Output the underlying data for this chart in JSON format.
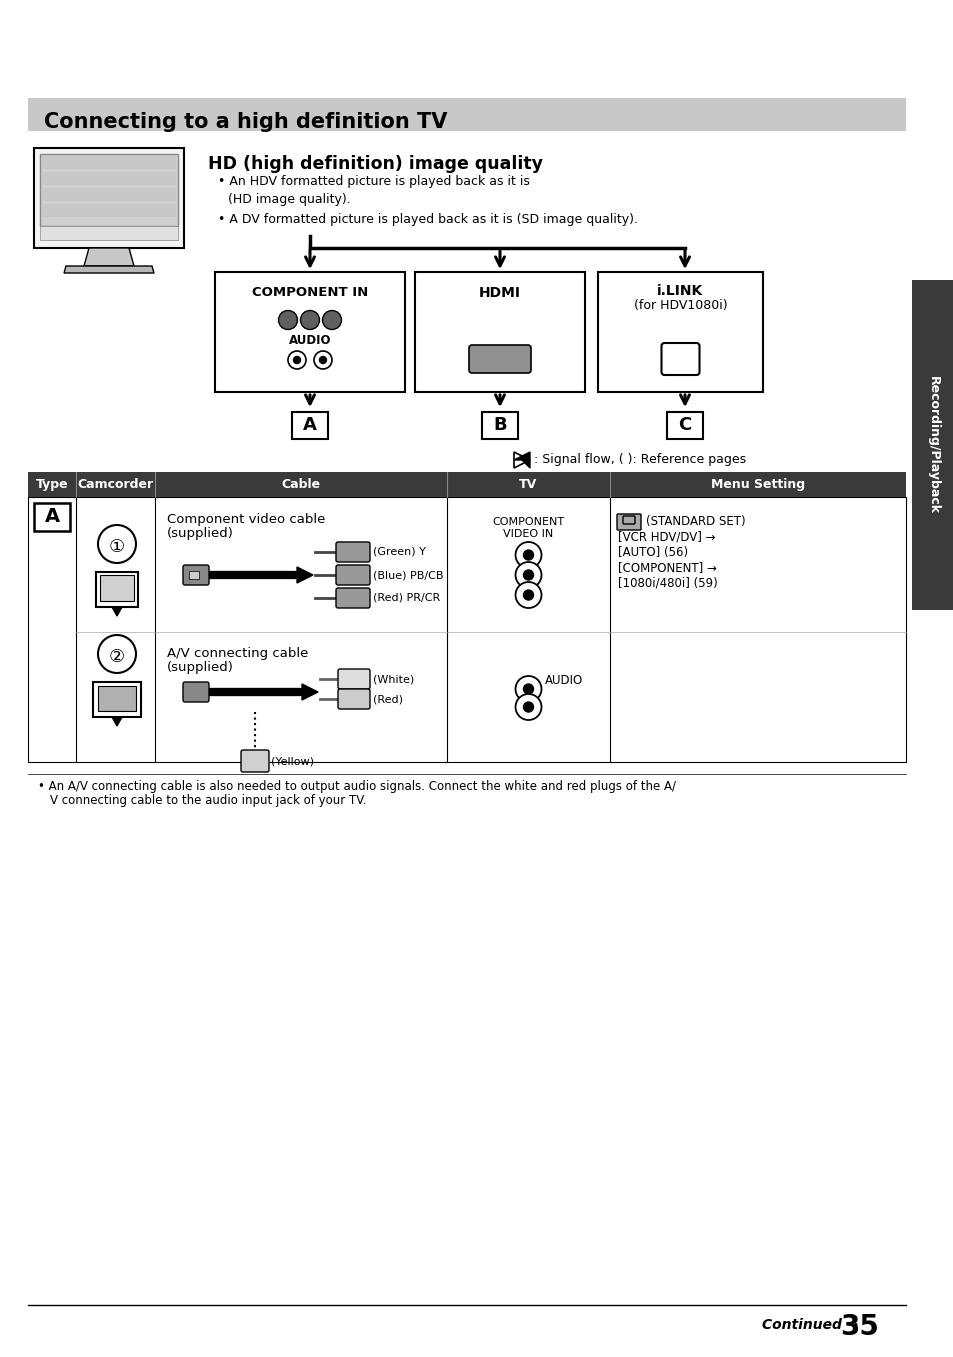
{
  "title": "Connecting to a high definition TV",
  "title_bg": "#c8c8c8",
  "page_bg": "#ffffff",
  "section_title": "HD (high definition) image quality",
  "bullet1_line1": "An HDV formatted picture is played back as it is",
  "bullet1_line2": "(HD image quality).",
  "bullet2": "A DV formatted picture is played back as it is (SD image quality).",
  "signal_flow_text": ": Signal flow, ( ): Reference pages",
  "table_headers": [
    "Type",
    "Camcorder",
    "Cable",
    "TV",
    "Menu Setting"
  ],
  "table_header_bg": "#3a3a3a",
  "table_header_color": "#ffffff",
  "box1_label1": "COMPONENT IN",
  "box1_label2": "AUDIO",
  "box2_label": "HDMI",
  "box3_label1": "i.LINK",
  "box3_label2": "(for HDV1080i)",
  "letter_A": "A",
  "letter_B": "B",
  "letter_C": "C",
  "cable1_label_line1": "Component video cable",
  "cable1_label_line2": "(supplied)",
  "cable1_colors": [
    "(Green) Y",
    "(Blue) PB/CB",
    "(Red) PR/CR"
  ],
  "tv_label1_line1": "COMPONENT",
  "tv_label1_line2": "VIDEO IN",
  "menu_setting_text_line1": "(STANDARD SET)",
  "menu_setting_text_line2": "[VCR HDV/DV] →",
  "menu_setting_text_line3": "[AUTO] (56)",
  "menu_setting_text_line4": "[COMPONENT] →",
  "menu_setting_text_line5": "[1080i/480i] (59)",
  "cable2_label_line1": "A/V connecting cable",
  "cable2_label_line2": "(supplied)",
  "cable2_white": "(White)",
  "cable2_red": "(Red)",
  "cable2_yellow": "(Yellow)",
  "tv_label2": "AUDIO",
  "footnote_line1": "An A/V connecting cable is also needed to output audio signals. Connect the white and red plugs of the A/",
  "footnote_line2": "V connecting cable to the audio input jack of your TV.",
  "continued_text": "Continued",
  "page_number": "35",
  "sidebar_text": "Recording/Playback",
  "sidebar_bg": "#3a3a3a",
  "sidebar_color": "#ffffff"
}
